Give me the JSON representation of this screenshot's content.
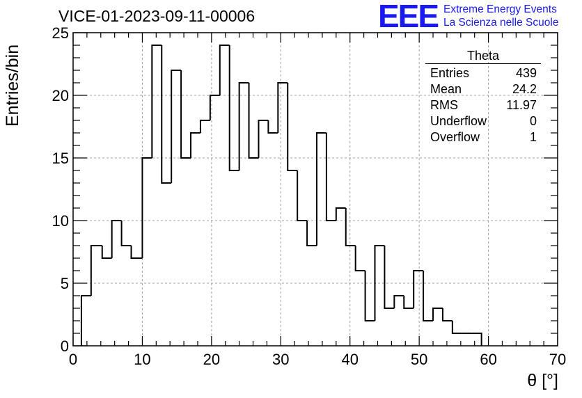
{
  "title": "VICE-01-2023-09-11-00006",
  "logo": {
    "mark": "EEE",
    "line1": "Extreme Energy Events",
    "line2": "La Scienza nelle Scuole"
  },
  "stats": {
    "title": "Theta",
    "rows": [
      {
        "label": "Entries",
        "value": "439"
      },
      {
        "label": "Mean",
        "value": "24.2"
      },
      {
        "label": "RMS",
        "value": "11.97"
      },
      {
        "label": "Underflow",
        "value": "0"
      },
      {
        "label": "Overflow",
        "value": "1"
      }
    ]
  },
  "colors": {
    "line": "#000000",
    "grid": "#a0a0a0",
    "logo": "#1a1aee"
  },
  "chart_data": {
    "type": "histogram",
    "xlabel": "θ [°]",
    "ylabel": "Entries/bin",
    "xlim": [
      0,
      70
    ],
    "ylim": [
      0,
      25
    ],
    "grid": true,
    "xticks": [
      0,
      10,
      20,
      30,
      40,
      50,
      60,
      70
    ],
    "yticks": [
      0,
      5,
      10,
      15,
      20,
      25
    ],
    "bin_edges": [
      1.2,
      2.6,
      4.2,
      5.6,
      7.0,
      8.4,
      10.0,
      11.4,
      12.8,
      14.2,
      15.6,
      17.0,
      18.4,
      19.8,
      21.2,
      22.6,
      24.0,
      25.4,
      26.8,
      28.2,
      29.6,
      31.0,
      32.4,
      33.8,
      35.2,
      36.6,
      38.0,
      39.4,
      40.8,
      42.2,
      43.6,
      45.0,
      46.4,
      47.8,
      49.2,
      50.6,
      52.0,
      53.4,
      54.8,
      56.2,
      57.6,
      59.0
    ],
    "counts": [
      4,
      8,
      7,
      10,
      8,
      7,
      15,
      24,
      13,
      22,
      15,
      17,
      18,
      20,
      24,
      14,
      21,
      15,
      18,
      17,
      21,
      14,
      10,
      8,
      17,
      10,
      11,
      8,
      6,
      2,
      8,
      3,
      4,
      3,
      6,
      2,
      3,
      2,
      1,
      1,
      1
    ]
  }
}
